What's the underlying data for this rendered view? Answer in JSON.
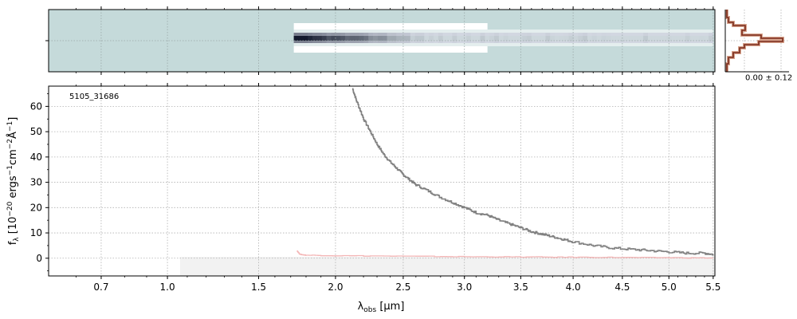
{
  "chart_data": [
    {
      "type": "line",
      "panel": "spectrum-1d",
      "object_label": "5105_31686",
      "ylabel": "f_λ [10^-20 erg s^-1 cm^-2 Å^-1]",
      "xlabel": "λ_obs [μm]",
      "x_scale": "sqrt",
      "xlim": [
        0.5,
        5.52
      ],
      "ylim": [
        -7,
        68
      ],
      "x_ticks": [
        "0.7",
        "1.0",
        "1.5",
        "2.0",
        "2.5",
        "3.0",
        "3.5",
        "4.0",
        "4.5",
        "5.0",
        "5.5"
      ],
      "y_ticks": [
        "0",
        "10",
        "20",
        "30",
        "40",
        "50",
        "60"
      ],
      "grid": true,
      "series": [
        {
          "color": "#808080",
          "x": [
            2.12,
            2.15,
            2.2,
            2.25,
            2.3,
            2.35,
            2.4,
            2.45,
            2.5,
            2.55,
            2.6,
            2.7,
            2.8,
            2.9,
            3.0,
            3.1,
            3.2,
            3.3,
            3.4,
            3.5,
            3.6,
            3.7,
            3.8,
            3.9,
            4.0,
            4.2,
            4.4,
            4.6,
            4.8,
            5.0,
            5.2,
            5.4,
            5.5
          ],
          "y": [
            67,
            62,
            55,
            50,
            45,
            41,
            38,
            35.5,
            33,
            31,
            29,
            26.5,
            24,
            22,
            20,
            18,
            17,
            15,
            13.5,
            12,
            10.5,
            9.5,
            8.5,
            7.5,
            6.5,
            5,
            4,
            3.5,
            3,
            2.5,
            2,
            2,
            1.5
          ]
        },
        {
          "color": "#f4b6b6",
          "x": [
            1.74,
            1.76,
            1.8,
            2.0,
            2.5,
            3.0,
            3.5,
            4.0,
            4.5,
            5.0,
            5.5
          ],
          "y": [
            3,
            1.5,
            1.2,
            1.0,
            0.8,
            0.6,
            0.5,
            0.4,
            0.3,
            0.2,
            0.1
          ]
        }
      ]
    },
    {
      "type": "heatmap",
      "panel": "spectrum-2d",
      "colormap": "bone",
      "background": "#c5dada",
      "trace_start_um": 1.72,
      "trace_end_um": 5.5,
      "upper_band_end_um": 3.2,
      "lower_band_end_um": 3.2
    },
    {
      "type": "line",
      "panel": "profile",
      "label": "0.00 ± 0.12",
      "colors": [
        "#7a2a1a",
        "#d7a48e"
      ]
    }
  ]
}
